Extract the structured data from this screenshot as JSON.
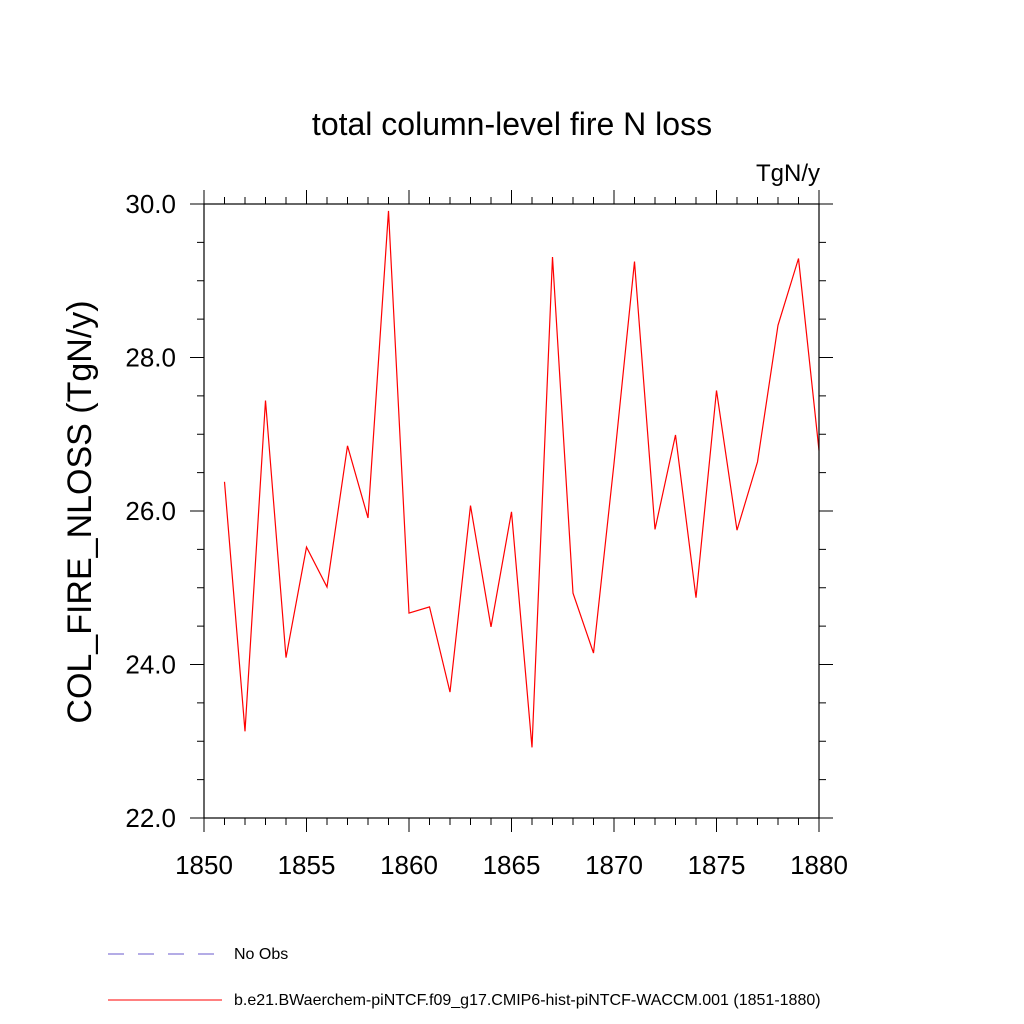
{
  "chart_data": {
    "type": "line",
    "title": "total column-level fire N loss",
    "units": "TgN/y",
    "xlabel": "",
    "ylabel": "COL_FIRE_NLOSS  (TgN/y)",
    "xlim": [
      1850,
      1880
    ],
    "ylim": [
      22.0,
      30.0
    ],
    "x_ticks": [
      1850,
      1855,
      1860,
      1865,
      1870,
      1875,
      1880
    ],
    "x_tick_labels": [
      "1850",
      "1855",
      "1860",
      "1865",
      "1870",
      "1875",
      "1880"
    ],
    "y_ticks": [
      22.0,
      24.0,
      26.0,
      28.0,
      30.0
    ],
    "y_tick_labels": [
      "22.0",
      "24.0",
      "26.0",
      "28.0",
      "30.0"
    ],
    "x": [
      1851,
      1852,
      1853,
      1854,
      1855,
      1856,
      1857,
      1858,
      1859,
      1860,
      1861,
      1862,
      1863,
      1864,
      1865,
      1866,
      1867,
      1868,
      1869,
      1870,
      1871,
      1872,
      1873,
      1874,
      1875,
      1876,
      1877,
      1878,
      1879,
      1880
    ],
    "series": [
      {
        "name": "b.e21.BWaerchem-piNTCF.f09_g17.CMIP6-hist-piNTCF-WACCM.001 (1851-1880)",
        "color": "#ff0000",
        "values": [
          26.38,
          23.13,
          27.44,
          24.09,
          25.53,
          25.01,
          26.85,
          25.91,
          29.91,
          24.67,
          24.75,
          23.64,
          26.07,
          24.49,
          25.99,
          22.92,
          29.31,
          24.93,
          24.15,
          26.62,
          29.25,
          25.76,
          26.99,
          24.87,
          27.57,
          25.75,
          26.64,
          28.42,
          29.29,
          26.79
        ]
      }
    ],
    "legend": {
      "placement": "bottom-left",
      "entries": [
        {
          "label": "No Obs",
          "style": "dashed",
          "color": "#6a5acd"
        },
        {
          "label": "b.e21.BWaerchem-piNTCF.f09_g17.CMIP6-hist-piNTCF-WACCM.001 (1851-1880)",
          "style": "solid",
          "color": "#ff0000"
        }
      ]
    },
    "grid": false
  }
}
